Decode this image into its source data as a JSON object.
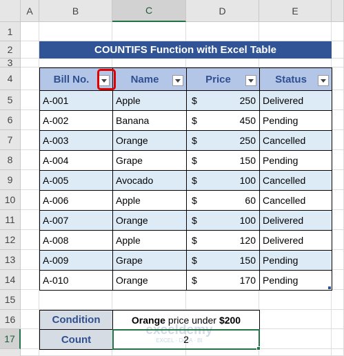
{
  "column_letters": [
    "A",
    "B",
    "C",
    "D",
    "E"
  ],
  "row_numbers": [
    1,
    2,
    3,
    4,
    5,
    6,
    7,
    8,
    9,
    10,
    11,
    12,
    13,
    14,
    15,
    16,
    17
  ],
  "title": "COUNTIFS Function with Excel Table",
  "table": {
    "headers": [
      "Bill No.",
      "Name",
      "Price",
      "Status"
    ],
    "rows": [
      {
        "bill": "A-001",
        "name": "Apple",
        "currency": "$",
        "price": 250,
        "status": "Delivered"
      },
      {
        "bill": "A-002",
        "name": "Banana",
        "currency": "$",
        "price": 450,
        "status": "Pending"
      },
      {
        "bill": "A-003",
        "name": "Orange",
        "currency": "$",
        "price": 250,
        "status": "Cancelled"
      },
      {
        "bill": "A-004",
        "name": "Grape",
        "currency": "$",
        "price": 150,
        "status": "Pending"
      },
      {
        "bill": "A-005",
        "name": "Avocado",
        "currency": "$",
        "price": 100,
        "status": "Cancelled"
      },
      {
        "bill": "A-006",
        "name": "Apple",
        "currency": "$",
        "price": 60,
        "status": "Cancelled"
      },
      {
        "bill": "A-007",
        "name": "Orange",
        "currency": "$",
        "price": 100,
        "status": "Delivered"
      },
      {
        "bill": "A-008",
        "name": "Apple",
        "currency": "$",
        "price": 120,
        "status": "Delivered"
      },
      {
        "bill": "A-009",
        "name": "Grape",
        "currency": "$",
        "price": 150,
        "status": "Pending"
      },
      {
        "bill": "A-010",
        "name": "Orange",
        "currency": "$",
        "price": 170,
        "status": "Pending"
      }
    ]
  },
  "summary": {
    "condition_label": "Condition",
    "condition_parts": [
      {
        "text": "Orange",
        "bold": true
      },
      {
        "text": "price under",
        "bold": false
      },
      {
        "text": "$200",
        "bold": true
      }
    ],
    "count_label": "Count",
    "count_value": 2
  },
  "watermark": {
    "brand": "exceldemy",
    "tagline": "EXCEL · DATA · BI"
  }
}
